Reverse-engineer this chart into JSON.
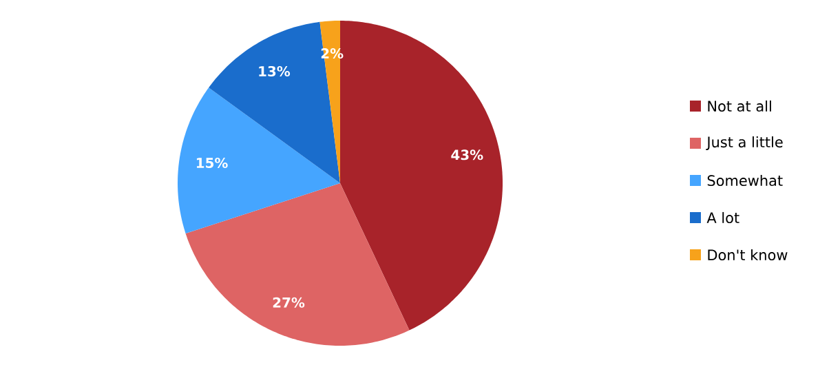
{
  "chart_data": {
    "type": "pie",
    "categories": [
      "Not at all",
      "Just a little",
      "Somewhat",
      "A lot",
      "Don't know"
    ],
    "values": [
      43,
      27,
      15,
      13,
      2
    ],
    "value_labels": [
      "43%",
      "27%",
      "15%",
      "13%",
      "2%"
    ],
    "colors": [
      "#a8232a",
      "#de6464",
      "#45a5ff",
      "#1a6dcc",
      "#f7a21b"
    ],
    "legend": "right"
  }
}
